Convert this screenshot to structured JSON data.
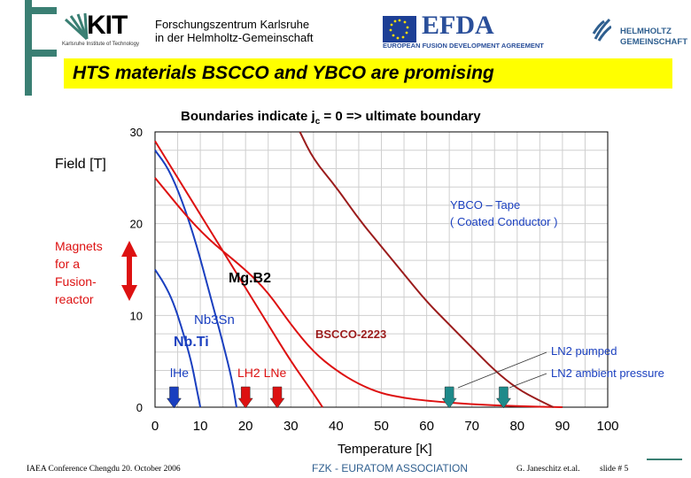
{
  "header": {
    "kit_logo": {
      "text": "KIT",
      "subtitle": "Karlsruhe Institute of Technology"
    },
    "institution_line1": "Forschungszentrum Karlsruhe",
    "institution_line2": "in der Helmholtz-Gemeinschaft",
    "efda_logo": {
      "text": "EFDA",
      "subtitle": "EUROPEAN FUSION DEVELOPMENT AGREEMENT"
    },
    "helmholtz_logo": {
      "line1": "HELMHOLTZ",
      "line2": "GEMEINSCHAFT"
    }
  },
  "slide_title": "HTS materials BSCCO and YBCO are promising",
  "subtitle": "Boundaries indicate jc = 0 => ultimate boundary",
  "colors": {
    "accent_green": "#3a7f73",
    "title_bg": "#ffff00",
    "red": "#dd1111",
    "blue": "#1a3fbf",
    "dark_red": "#9b1c1c",
    "teal": "#1e8a8a"
  },
  "chart_data": {
    "type": "line",
    "xlabel": "Temperature [K]",
    "ylabel": "Field [T]",
    "xlim": [
      0,
      100
    ],
    "ylim": [
      0,
      30
    ],
    "xticks": [
      0,
      10,
      20,
      30,
      40,
      50,
      60,
      70,
      80,
      90,
      100
    ],
    "yticks": [
      0,
      10,
      20,
      30
    ],
    "grid": true,
    "series": [
      {
        "name": "Nb.Ti",
        "color": "#1a3fbf",
        "points": [
          [
            0,
            15
          ],
          [
            2,
            13.5
          ],
          [
            4,
            11.5
          ],
          [
            6,
            8.5
          ],
          [
            8,
            5
          ],
          [
            9,
            2.5
          ],
          [
            10,
            0
          ]
        ]
      },
      {
        "name": "Nb3Sn",
        "color": "#1a3fbf",
        "points": [
          [
            0,
            28
          ],
          [
            3,
            26
          ],
          [
            6,
            22.5
          ],
          [
            9,
            18
          ],
          [
            12,
            12.5
          ],
          [
            15,
            7
          ],
          [
            17,
            3
          ],
          [
            18,
            0
          ]
        ]
      },
      {
        "name": "Mg.B2",
        "color": "#dd1111",
        "points": [
          [
            0,
            29
          ],
          [
            5,
            25
          ],
          [
            10,
            21
          ],
          [
            15,
            17
          ],
          [
            20,
            13
          ],
          [
            25,
            9
          ],
          [
            30,
            5
          ],
          [
            35,
            1.5
          ],
          [
            37,
            0
          ]
        ]
      },
      {
        "name": "BSCCO-2223",
        "color": "#dd1111",
        "points": [
          [
            0,
            25
          ],
          [
            10,
            19
          ],
          [
            20,
            15
          ],
          [
            25,
            12.5
          ],
          [
            30,
            9
          ],
          [
            35,
            6
          ],
          [
            40,
            4
          ],
          [
            45,
            2.5
          ],
          [
            50,
            1.5
          ],
          [
            55,
            1
          ],
          [
            60,
            0.7
          ],
          [
            70,
            0.3
          ],
          [
            80,
            0.1
          ],
          [
            90,
            0
          ]
        ]
      },
      {
        "name": "YBCO - Tape (Coated Conductor)",
        "color": "#9b1c1c",
        "points": [
          [
            32,
            30
          ],
          [
            35,
            27
          ],
          [
            40,
            24
          ],
          [
            45,
            20.5
          ],
          [
            50,
            17.5
          ],
          [
            55,
            14.5
          ],
          [
            60,
            11.5
          ],
          [
            65,
            9
          ],
          [
            70,
            6.5
          ],
          [
            75,
            4
          ],
          [
            80,
            2
          ],
          [
            85,
            0.7
          ],
          [
            88,
            0
          ]
        ]
      }
    ],
    "operating_points": [
      {
        "label": "He",
        "x": 4.2,
        "color": "#1a3fbf"
      },
      {
        "label": "LH2",
        "x": 20,
        "color": "#dd1111"
      },
      {
        "label": "LNe",
        "x": 27,
        "color": "#dd1111"
      },
      {
        "label": "LN2 pumped",
        "x": 65,
        "color": "#1e8a8a"
      },
      {
        "label": "LN2 ambient pressure",
        "x": 77,
        "color": "#1e8a8a"
      }
    ],
    "annotations": {
      "nbti": "Nb.Ti",
      "nb3sn": "Nb3Sn",
      "mgb2": "Mg.B2",
      "bscco": "BSCCO-2223",
      "ybco_line1": "YBCO – Tape",
      "ybco_line2": "( Coated Conductor )",
      "he": "lHe",
      "lh2_lne": "LH2 LNe",
      "ln2_pumped": "LN2 pumped",
      "ln2_ambient": "LN2 ambient pressure",
      "magnets_line1": "Magnets",
      "magnets_line2": "for a",
      "magnets_line3": "Fusion-",
      "magnets_line4": "reactor"
    }
  },
  "footer": {
    "conference": "IAEA Conference Chengdu 20. October 2006",
    "association": "FZK - EURATOM ASSOCIATION",
    "author": "G. Janeschitz et.al.",
    "slide": "slide # 5"
  }
}
